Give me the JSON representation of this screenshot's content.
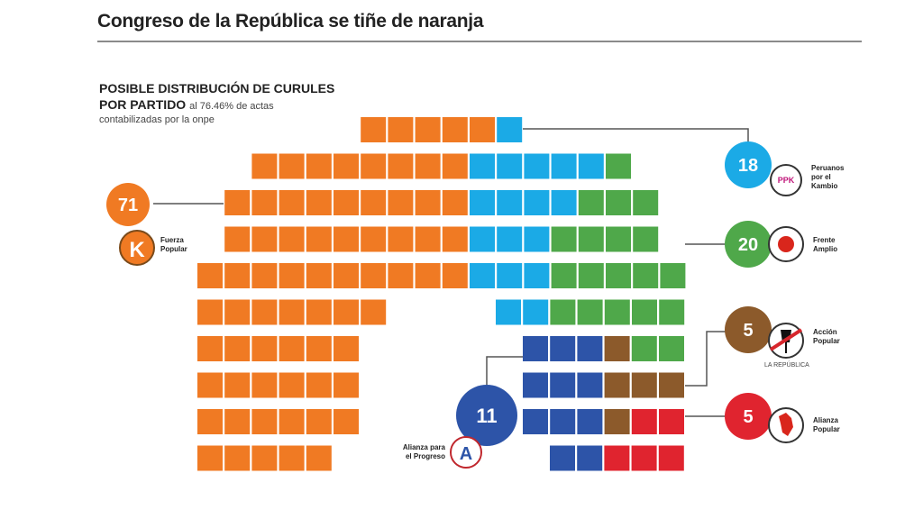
{
  "header": {
    "title": "Congreso de la República se tiñe de naranja",
    "subtitle_line1": "POSIBLE DISTRIBUCIÓN DE CURULES",
    "subtitle_line2": "POR PARTIDO",
    "subtitle_note": "al 76.46% de actas",
    "subtitle_line3": "contabilizadas por la onpe"
  },
  "chart_data": {
    "type": "seat-grid",
    "title": "POSIBLE DISTRIBUCIÓN DE CURULES POR PARTIDO",
    "total_seats": 130,
    "series": [
      {
        "name": "Fuerza Popular",
        "value": 71,
        "color": "#F07A23",
        "logo_letter": "K"
      },
      {
        "name": "Peruanos por el Kambio",
        "value": 18,
        "color": "#1BAAE6",
        "logo_text": "PPK"
      },
      {
        "name": "Frente Amplio",
        "value": 20,
        "color": "#4FA84A"
      },
      {
        "name": "Acción Popular",
        "value": 5,
        "color": "#8C5A2B"
      },
      {
        "name": "Alianza Popular",
        "value": 5,
        "color": "#E0242F"
      },
      {
        "name": "Alianza para el Progreso",
        "value": 11,
        "color": "#2D54A8",
        "logo_letter": "A"
      }
    ],
    "rows": [
      [
        "F5",
        "P1"
      ],
      [
        "F8",
        "P5",
        "G1"
      ],
      [
        "F9",
        "P4",
        "G3"
      ],
      [
        "F9",
        "P3",
        "G4"
      ],
      [
        "F10",
        "P3",
        "G5"
      ],
      [
        "F7",
        "GAP",
        "P2",
        "G5"
      ],
      [
        "F6",
        "GAP",
        "A3",
        "C1",
        "G2"
      ],
      [
        "F6",
        "GAP",
        "A3",
        "C3"
      ],
      [
        "F6",
        "GAP",
        "A3",
        "C1",
        "R2"
      ],
      [
        "F5",
        "GAP",
        "A2",
        "R3"
      ]
    ],
    "rows_offset_cells": [
      6,
      2,
      1,
      1,
      0,
      0,
      0,
      0,
      0,
      0
    ]
  },
  "credits": {
    "source": "LA REPÚBLICA"
  },
  "labels": {
    "fuerza_popular": [
      "Fuerza",
      "Popular"
    ],
    "ppk": [
      "Peruanos",
      "por el",
      "Kambio"
    ],
    "frente_amplio": [
      "Frente",
      "Amplio"
    ],
    "accion_popular": [
      "Acción",
      "Popular"
    ],
    "alianza_popular": [
      "Alianza",
      "Popular"
    ],
    "app": [
      "Alianza para",
      "el Progreso"
    ]
  }
}
